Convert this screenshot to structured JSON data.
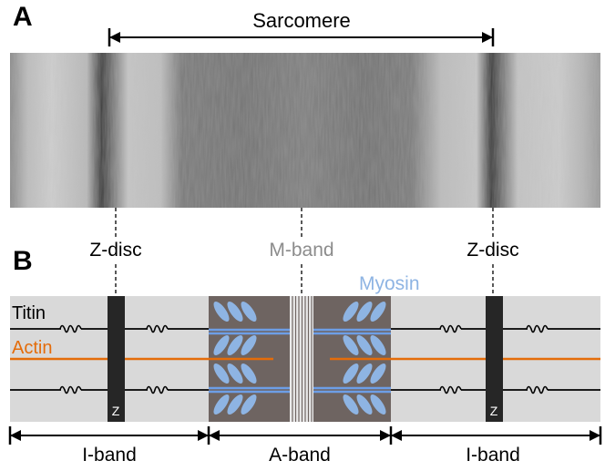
{
  "panels": {
    "a_letter": "A",
    "b_letter": "B"
  },
  "labels": {
    "sarcomere": "Sarcomere",
    "z_disc_left": "Z-disc",
    "m_band": "M-band",
    "z_disc_right": "Z-disc",
    "myosin": "Myosin",
    "titin": "Titin",
    "actin": "Actin",
    "z_left": "Z",
    "z_right": "Z",
    "i_band_left": "I-band",
    "a_band": "A-band",
    "i_band_right": "I-band"
  },
  "colors": {
    "actin": "#e46c0a",
    "myosin": "#8eb4e3",
    "myosin_filament": "#6d9ee6",
    "i_band_bg": "#d9d9d9",
    "a_band_bg": "#6e6461",
    "m_band_label": "#8c8c8c",
    "z_disc": "#262626",
    "titin": "#000000"
  }
}
